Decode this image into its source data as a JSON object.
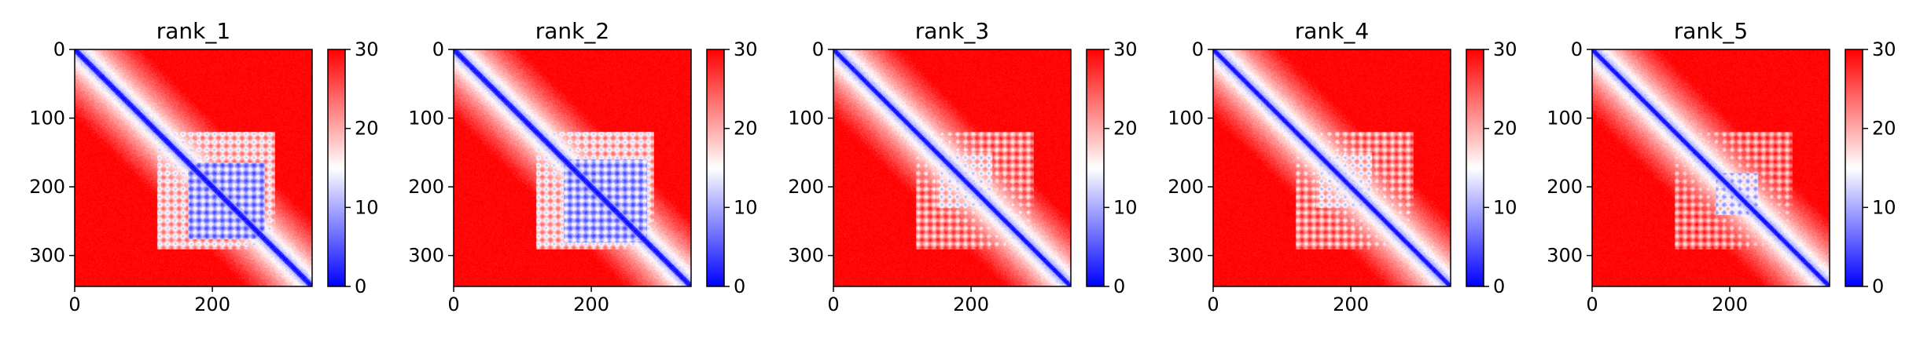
{
  "chart_data": [
    {
      "type": "heatmap",
      "title": "rank_1",
      "matrix_size": 345,
      "xlim": [
        0,
        345
      ],
      "ylim": [
        345,
        0
      ],
      "xticks": [
        0,
        200
      ],
      "yticks": [
        0,
        100,
        200,
        300
      ],
      "colorbar": {
        "min": 0,
        "max": 30,
        "ticks": [
          0,
          10,
          20,
          30
        ],
        "colors": [
          "#0000ff",
          "#ffffff",
          "#ff0000"
        ]
      },
      "diagonal_width": 5,
      "domain_blocks": [
        {
          "x": [
            120,
            290
          ],
          "y": [
            120,
            290
          ],
          "value": 18
        },
        {
          "x": [
            165,
            275
          ],
          "y": [
            165,
            275
          ],
          "value": 10
        }
      ]
    },
    {
      "type": "heatmap",
      "title": "rank_2",
      "matrix_size": 345,
      "xlim": [
        0,
        345
      ],
      "ylim": [
        345,
        0
      ],
      "xticks": [
        0,
        200
      ],
      "yticks": [
        0,
        100,
        200,
        300
      ],
      "colorbar": {
        "min": 0,
        "max": 30,
        "ticks": [
          0,
          10,
          20,
          30
        ],
        "colors": [
          "#0000ff",
          "#ffffff",
          "#ff0000"
        ]
      },
      "diagonal_width": 5,
      "domain_blocks": [
        {
          "x": [
            120,
            290
          ],
          "y": [
            120,
            290
          ],
          "value": 18
        },
        {
          "x": [
            160,
            280
          ],
          "y": [
            160,
            280
          ],
          "value": 10
        }
      ]
    },
    {
      "type": "heatmap",
      "title": "rank_3",
      "matrix_size": 345,
      "xlim": [
        0,
        345
      ],
      "ylim": [
        345,
        0
      ],
      "xticks": [
        0,
        200
      ],
      "yticks": [
        0,
        100,
        200,
        300
      ],
      "colorbar": {
        "min": 0,
        "max": 30,
        "ticks": [
          0,
          10,
          20,
          30
        ],
        "colors": [
          "#0000ff",
          "#ffffff",
          "#ff0000"
        ]
      },
      "diagonal_width": 4,
      "domain_blocks": [
        {
          "x": [
            120,
            290
          ],
          "y": [
            120,
            290
          ],
          "value": 22
        },
        {
          "x": [
            150,
            230
          ],
          "y": [
            150,
            230
          ],
          "value": 17
        }
      ]
    },
    {
      "type": "heatmap",
      "title": "rank_4",
      "matrix_size": 345,
      "xlim": [
        0,
        345
      ],
      "ylim": [
        345,
        0
      ],
      "xticks": [
        0,
        200
      ],
      "yticks": [
        0,
        100,
        200,
        300
      ],
      "colorbar": {
        "min": 0,
        "max": 30,
        "ticks": [
          0,
          10,
          20,
          30
        ],
        "colors": [
          "#0000ff",
          "#ffffff",
          "#ff0000"
        ]
      },
      "diagonal_width": 4,
      "domain_blocks": [
        {
          "x": [
            120,
            290
          ],
          "y": [
            120,
            290
          ],
          "value": 22
        },
        {
          "x": [
            150,
            230
          ],
          "y": [
            150,
            230
          ],
          "value": 17
        }
      ]
    },
    {
      "type": "heatmap",
      "title": "rank_5",
      "matrix_size": 345,
      "xlim": [
        0,
        345
      ],
      "ylim": [
        345,
        0
      ],
      "xticks": [
        0,
        200
      ],
      "yticks": [
        0,
        100,
        200,
        300
      ],
      "colorbar": {
        "min": 0,
        "max": 30,
        "ticks": [
          0,
          10,
          20,
          30
        ],
        "colors": [
          "#0000ff",
          "#ffffff",
          "#ff0000"
        ]
      },
      "diagonal_width": 4,
      "domain_blocks": [
        {
          "x": [
            120,
            290
          ],
          "y": [
            120,
            290
          ],
          "value": 23
        },
        {
          "x": [
            180,
            240
          ],
          "y": [
            180,
            240
          ],
          "value": 14
        }
      ]
    }
  ]
}
